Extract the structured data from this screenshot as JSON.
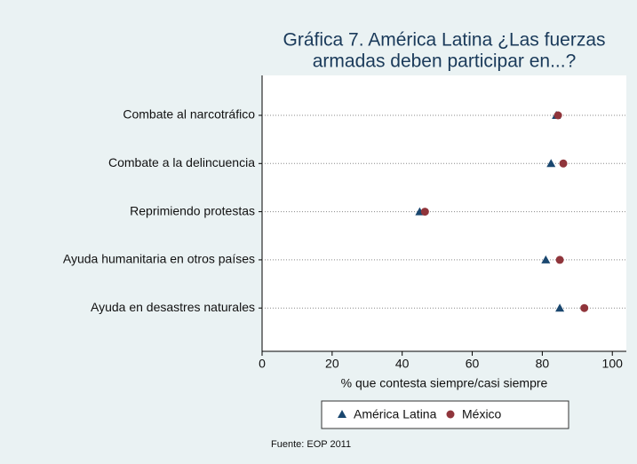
{
  "chart_data": {
    "type": "dot",
    "title": "Gráfica 7. América Latina ¿Las fuerzas armadas deben participar en...?",
    "title_lines": [
      "Gráfica 7. América Latina ¿Las fuerzas",
      "armadas deben participar en...?"
    ],
    "categories": [
      "Combate al narcotráfico",
      "Combate a la delincuencia",
      "Reprimiendo protestas",
      "Ayuda humanitaria en otros países",
      "Ayuda en desastres naturales"
    ],
    "series": [
      {
        "name": "América Latina",
        "color": "#1a476f",
        "marker": "triangle",
        "values": [
          84,
          82.5,
          45,
          81,
          85
        ]
      },
      {
        "name": "México",
        "color": "#90353b",
        "marker": "circle",
        "values": [
          84.5,
          86,
          46.5,
          85,
          92
        ]
      }
    ],
    "xlabel": "% que contesta siempre/casi siempre",
    "xlim": [
      0,
      104
    ],
    "xticks": [
      0,
      20,
      40,
      60,
      80,
      100
    ],
    "source": "Fuente: EOP 2011"
  }
}
